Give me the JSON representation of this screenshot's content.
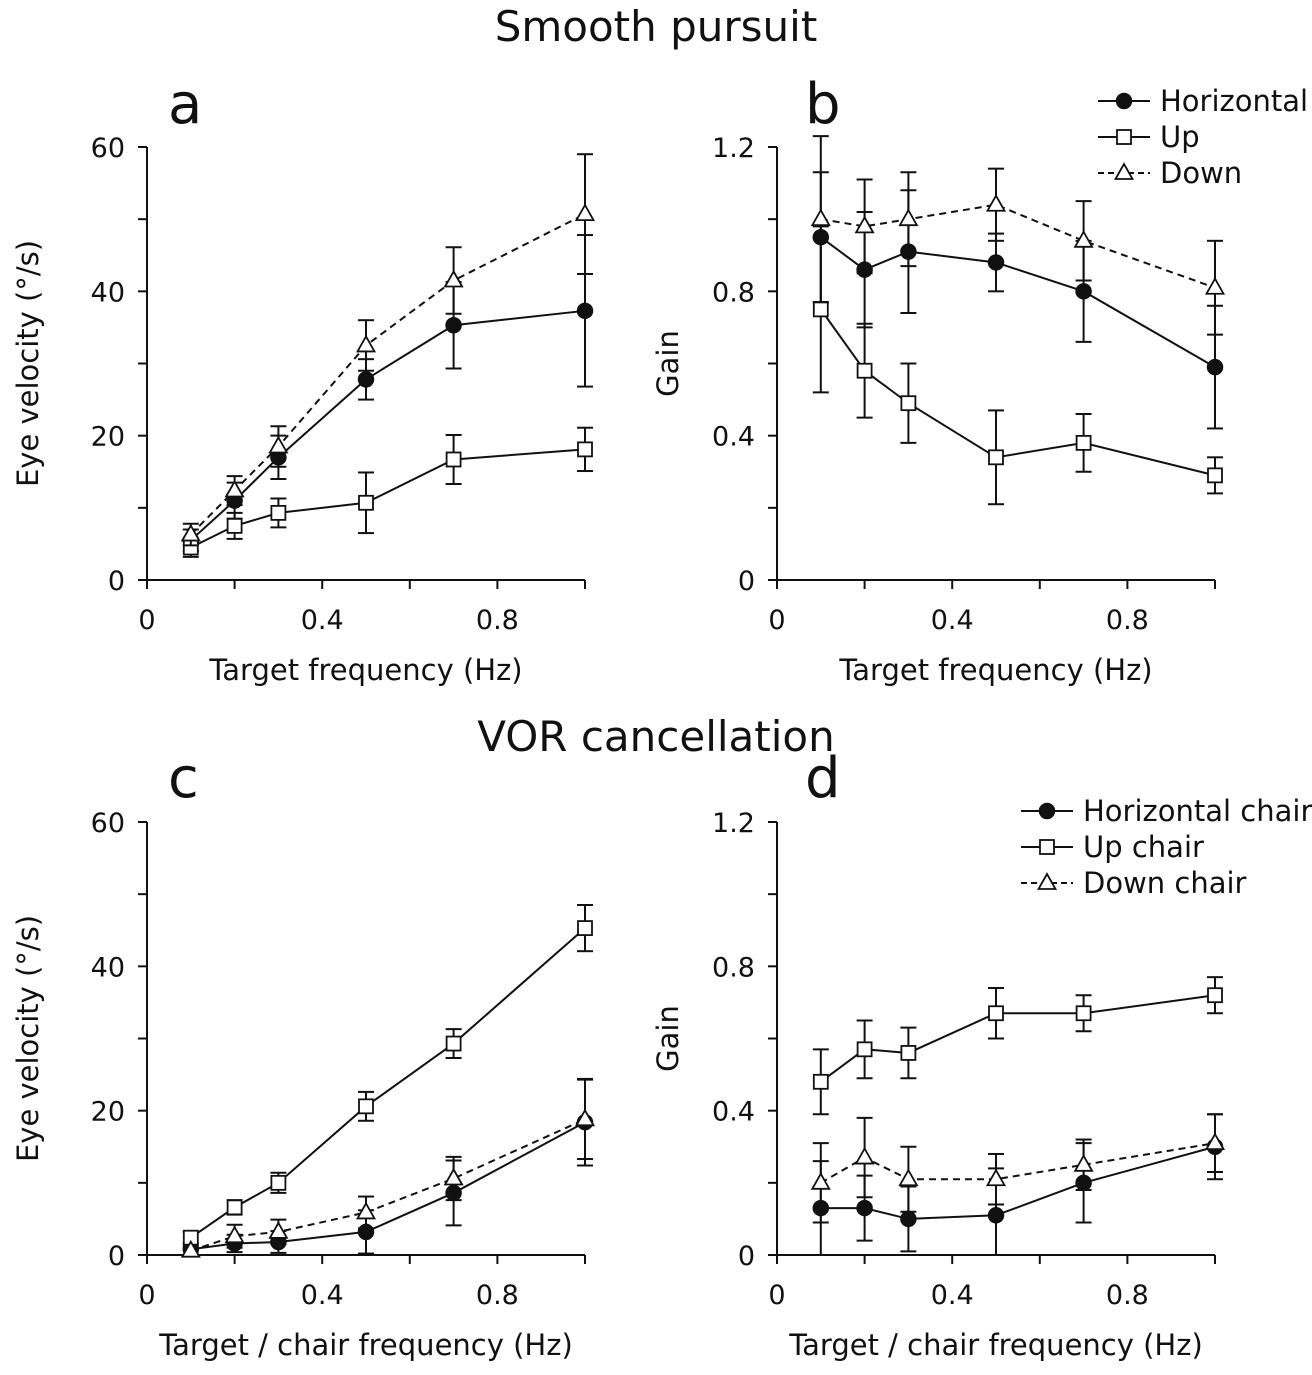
{
  "headings": {
    "top": "Smooth pursuit",
    "bottom": "VOR cancellation"
  },
  "chart_data": [
    {
      "type": "line",
      "panel": "a",
      "title": "",
      "xlabel": "Target frequency (Hz)",
      "ylabel": "Eye velocity (°/s)",
      "xlim": [
        0,
        1.0
      ],
      "ylim": [
        0,
        60
      ],
      "xticks": [
        0,
        0.4,
        0.8
      ],
      "xtick_labels": [
        "0",
        "0.4",
        "0.8"
      ],
      "yticks": [
        0,
        20,
        40,
        60
      ],
      "ytick_labels": [
        "0",
        "20",
        "40",
        "60"
      ],
      "grid": false,
      "legend": null,
      "series": [
        {
          "name": "Horizontal",
          "marker": "filled-circle",
          "dash": "solid",
          "x": [
            0.1,
            0.2,
            0.3,
            0.5,
            0.7,
            1.0
          ],
          "y": [
            5.5,
            11.0,
            17.0,
            27.8,
            35.3,
            37.3
          ],
          "err": [
            1.5,
            2.5,
            3.0,
            2.8,
            6.0,
            10.5
          ]
        },
        {
          "name": "Up",
          "marker": "open-square",
          "dash": "solid",
          "x": [
            0.1,
            0.2,
            0.3,
            0.5,
            0.7,
            1.0
          ],
          "y": [
            4.5,
            7.5,
            9.3,
            10.7,
            16.7,
            18.1
          ],
          "err": [
            1.3,
            1.8,
            2.0,
            4.2,
            3.4,
            3.0
          ]
        },
        {
          "name": "Down",
          "marker": "open-triangle",
          "dash": "dashed",
          "x": [
            0.1,
            0.2,
            0.3,
            0.5,
            0.7,
            1.0
          ],
          "y": [
            6.3,
            12.4,
            18.5,
            32.5,
            41.5,
            50.7
          ],
          "err": [
            1.5,
            2.0,
            2.8,
            3.5,
            4.6,
            8.3
          ]
        }
      ]
    },
    {
      "type": "line",
      "panel": "b",
      "title": "",
      "xlabel": "Target frequency (Hz)",
      "ylabel": "Gain",
      "xlim": [
        0,
        1.0
      ],
      "ylim": [
        0,
        1.2
      ],
      "xticks": [
        0,
        0.4,
        0.8
      ],
      "xtick_labels": [
        "0",
        "0.4",
        "0.8"
      ],
      "yticks": [
        0,
        0.4,
        0.8,
        1.2
      ],
      "ytick_labels": [
        "0",
        "0.4",
        "0.8",
        "1.2"
      ],
      "grid": false,
      "legend": "top-right",
      "series": [
        {
          "name": "Horizontal",
          "marker": "filled-circle",
          "dash": "solid",
          "x": [
            0.1,
            0.2,
            0.3,
            0.5,
            0.7,
            1.0
          ],
          "y": [
            0.95,
            0.86,
            0.91,
            0.88,
            0.8,
            0.59
          ],
          "err": [
            0.18,
            0.16,
            0.17,
            0.08,
            0.14,
            0.17
          ]
        },
        {
          "name": "Up",
          "marker": "open-square",
          "dash": "solid",
          "x": [
            0.1,
            0.2,
            0.3,
            0.5,
            0.7,
            1.0
          ],
          "y": [
            0.75,
            0.58,
            0.49,
            0.34,
            0.38,
            0.29
          ],
          "err": [
            0.23,
            0.13,
            0.11,
            0.13,
            0.08,
            0.05
          ]
        },
        {
          "name": "Down",
          "marker": "open-triangle",
          "dash": "dashed",
          "x": [
            0.1,
            0.2,
            0.3,
            0.5,
            0.7,
            1.0
          ],
          "y": [
            1.0,
            0.98,
            1.0,
            1.04,
            0.94,
            0.81
          ],
          "err": [
            0.23,
            0.13,
            0.13,
            0.1,
            0.11,
            0.13
          ]
        }
      ]
    },
    {
      "type": "line",
      "panel": "c",
      "title": "",
      "xlabel": "Target / chair frequency (Hz)",
      "ylabel": "Eye velocity (°/s)",
      "xlim": [
        0,
        1.0
      ],
      "ylim": [
        0,
        60
      ],
      "xticks": [
        0,
        0.4,
        0.8
      ],
      "xtick_labels": [
        "0",
        "0.4",
        "0.8"
      ],
      "yticks": [
        0,
        20,
        40,
        60
      ],
      "ytick_labels": [
        "0",
        "20",
        "40",
        "60"
      ],
      "grid": false,
      "legend": null,
      "series": [
        {
          "name": "Horizontal chair",
          "marker": "filled-circle",
          "dash": "solid",
          "x": [
            0.1,
            0.2,
            0.3,
            0.5,
            0.7,
            1.0
          ],
          "y": [
            0.8,
            1.6,
            1.8,
            3.2,
            8.6,
            18.4
          ],
          "err": [
            0.8,
            1.2,
            1.5,
            3.0,
            4.5,
            6.0
          ]
        },
        {
          "name": "Up chair",
          "marker": "open-square",
          "dash": "solid",
          "x": [
            0.1,
            0.2,
            0.3,
            0.5,
            0.7,
            1.0
          ],
          "y": [
            2.4,
            6.6,
            10.0,
            20.6,
            29.3,
            45.3
          ],
          "err": [
            0.8,
            1.0,
            1.4,
            2.0,
            2.0,
            3.2
          ]
        },
        {
          "name": "Down chair",
          "marker": "open-triangle",
          "dash": "dashed",
          "x": [
            0.1,
            0.2,
            0.3,
            0.5,
            0.7,
            1.0
          ],
          "y": [
            0.6,
            2.6,
            3.2,
            5.9,
            10.6,
            18.8
          ],
          "err": [
            0.6,
            1.6,
            1.7,
            2.2,
            3.0,
            5.5
          ]
        }
      ]
    },
    {
      "type": "line",
      "panel": "d",
      "title": "",
      "xlabel": "Target / chair frequency (Hz)",
      "ylabel": "Gain",
      "xlim": [
        0,
        1.0
      ],
      "ylim": [
        0,
        1.2
      ],
      "xticks": [
        0,
        0.4,
        0.8
      ],
      "xtick_labels": [
        "0",
        "0.4",
        "0.8"
      ],
      "yticks": [
        0,
        0.4,
        0.8,
        1.2
      ],
      "ytick_labels": [
        "0",
        "0.4",
        "0.8",
        "1.2"
      ],
      "grid": false,
      "legend": "top-right",
      "series": [
        {
          "name": "Horizontal chair",
          "marker": "filled-circle",
          "dash": "solid",
          "x": [
            0.1,
            0.2,
            0.3,
            0.5,
            0.7,
            1.0
          ],
          "y": [
            0.13,
            0.13,
            0.1,
            0.11,
            0.2,
            0.3
          ],
          "err": [
            0.13,
            0.09,
            0.09,
            0.13,
            0.11,
            0.09
          ]
        },
        {
          "name": "Up chair",
          "marker": "open-square",
          "dash": "solid",
          "x": [
            0.1,
            0.2,
            0.3,
            0.5,
            0.7,
            1.0
          ],
          "y": [
            0.48,
            0.57,
            0.56,
            0.67,
            0.67,
            0.72
          ],
          "err": [
            0.09,
            0.08,
            0.07,
            0.07,
            0.05,
            0.05
          ]
        },
        {
          "name": "Down chair",
          "marker": "open-triangle",
          "dash": "dashed",
          "x": [
            0.1,
            0.2,
            0.3,
            0.5,
            0.7,
            1.0
          ],
          "y": [
            0.2,
            0.27,
            0.21,
            0.21,
            0.25,
            0.31
          ],
          "err": [
            0.11,
            0.11,
            0.09,
            0.07,
            0.07,
            0.08
          ]
        }
      ]
    }
  ]
}
